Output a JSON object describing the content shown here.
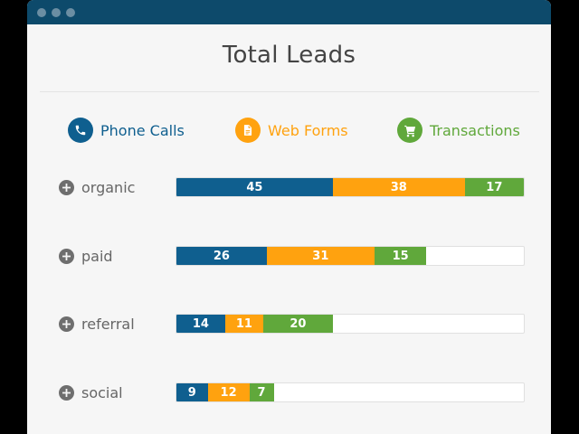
{
  "title": "Total Leads",
  "legend": [
    {
      "label": "Phone Calls",
      "icon": "phone-icon",
      "color": "#0f5f8f"
    },
    {
      "label": "Web Forms",
      "icon": "document-icon",
      "color": "#ffa20f"
    },
    {
      "label": "Transactions",
      "icon": "cart-icon",
      "color": "#60a83b"
    }
  ],
  "chart_data": {
    "type": "bar",
    "orientation": "horizontal",
    "stacked": true,
    "title": "Total Leads",
    "categories": [
      "organic",
      "paid",
      "referral",
      "social"
    ],
    "series": [
      {
        "name": "Phone Calls",
        "color": "#0f5f8f",
        "values": [
          45,
          26,
          14,
          9
        ]
      },
      {
        "name": "Web Forms",
        "color": "#ffa20f",
        "values": [
          38,
          31,
          11,
          12
        ]
      },
      {
        "name": "Transactions",
        "color": "#60a83b",
        "values": [
          17,
          15,
          20,
          7
        ]
      }
    ],
    "xlim": [
      0,
      100
    ],
    "grid": false,
    "legend_position": "top"
  }
}
